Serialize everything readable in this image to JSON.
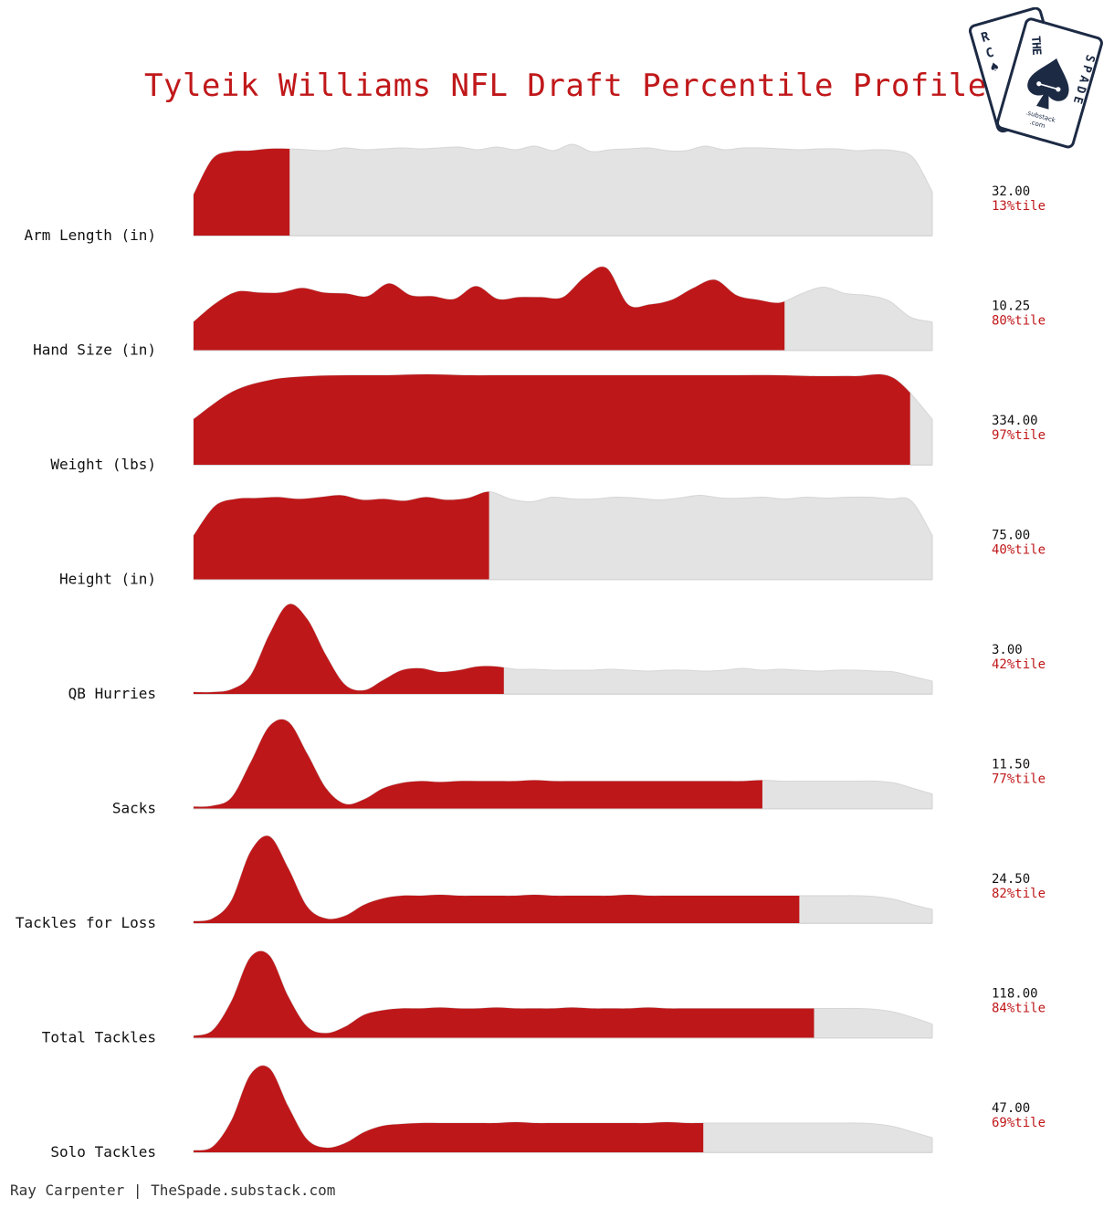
{
  "title": "Tyleik Williams NFL Draft Percentile Profile",
  "footer": "Ray Carpenter | TheSpade.substack.com",
  "logo": {
    "back_card_letters": [
      "R",
      "C"
    ],
    "front_card_top": "THE",
    "front_card_side": "SPADE",
    "substack": ".substack",
    "com": ".com"
  },
  "colors": {
    "highlight": "#be1719",
    "background_dist": "#e3e3e3",
    "value_text": "#111111",
    "percentile_text": "#c0181a",
    "logo": "#1c2a44"
  },
  "chart_data": {
    "type": "area",
    "description_of_encoding": "",
    "metrics": [
      {
        "label": "Arm Length (in)",
        "value_label": "32.00",
        "percentile_label": "13%tile",
        "percentile": 13,
        "density": [
          0.45,
          0.84,
          0.92,
          0.93,
          0.95,
          0.95,
          0.94,
          0.93,
          0.96,
          0.94,
          0.95,
          0.96,
          0.95,
          0.96,
          0.97,
          0.94,
          0.97,
          0.94,
          0.98,
          0.93,
          1.0,
          0.92,
          0.94,
          0.95,
          0.96,
          0.93,
          0.93,
          0.98,
          0.94,
          0.96,
          0.96,
          0.95,
          0.94,
          0.95,
          0.95,
          0.93,
          0.94,
          0.93,
          0.85,
          0.48
        ]
      },
      {
        "label": "Hand Size (in)",
        "value_label": "10.25",
        "percentile_label": "80%tile",
        "percentile": 80,
        "density": [
          0.31,
          0.51,
          0.64,
          0.63,
          0.63,
          0.68,
          0.63,
          0.62,
          0.59,
          0.73,
          0.6,
          0.59,
          0.56,
          0.7,
          0.56,
          0.58,
          0.58,
          0.58,
          0.8,
          0.9,
          0.5,
          0.5,
          0.55,
          0.68,
          0.77,
          0.6,
          0.55,
          0.52,
          0.62,
          0.69,
          0.62,
          0.6,
          0.54,
          0.36,
          0.31
        ]
      },
      {
        "label": "Weight (lbs)",
        "value_label": "334.00",
        "percentile_label": "97%tile",
        "percentile": 97,
        "density": [
          0.5,
          0.8,
          0.93,
          0.97,
          0.98,
          0.98,
          0.99,
          0.98,
          0.98,
          0.98,
          0.98,
          0.98,
          0.98,
          0.98,
          0.98,
          0.98,
          0.97,
          0.97,
          0.95,
          0.5
        ]
      },
      {
        "label": "Height (in)",
        "value_label": "75.00",
        "percentile_label": "40%tile",
        "percentile": 40,
        "density": [
          0.48,
          0.8,
          0.88,
          0.89,
          0.9,
          0.88,
          0.9,
          0.92,
          0.87,
          0.88,
          0.86,
          0.9,
          0.87,
          0.89,
          0.96,
          0.88,
          0.85,
          0.9,
          0.88,
          0.88,
          0.9,
          0.89,
          0.87,
          0.89,
          0.92,
          0.89,
          0.89,
          0.9,
          0.88,
          0.9,
          0.89,
          0.9,
          0.9,
          0.88,
          0.86,
          0.48
        ]
      },
      {
        "label": "QB Hurries",
        "value_label": "3.00",
        "percentile_label": "42%tile",
        "percentile": 42,
        "density": [
          0.02,
          0.02,
          0.05,
          0.2,
          0.65,
          0.98,
          0.82,
          0.42,
          0.1,
          0.04,
          0.15,
          0.26,
          0.28,
          0.24,
          0.26,
          0.3,
          0.3,
          0.27,
          0.27,
          0.26,
          0.26,
          0.26,
          0.27,
          0.26,
          0.25,
          0.26,
          0.26,
          0.25,
          0.26,
          0.28,
          0.26,
          0.27,
          0.26,
          0.25,
          0.26,
          0.26,
          0.25,
          0.24,
          0.19,
          0.14
        ]
      },
      {
        "label": "Sacks",
        "value_label": "11.50",
        "percentile_label": "77%tile",
        "percentile": 77,
        "density": [
          0.02,
          0.03,
          0.12,
          0.5,
          0.9,
          0.95,
          0.6,
          0.22,
          0.05,
          0.1,
          0.22,
          0.28,
          0.3,
          0.29,
          0.3,
          0.3,
          0.3,
          0.3,
          0.31,
          0.3,
          0.3,
          0.3,
          0.3,
          0.3,
          0.3,
          0.3,
          0.3,
          0.3,
          0.3,
          0.3,
          0.31,
          0.3,
          0.3,
          0.3,
          0.3,
          0.3,
          0.3,
          0.28,
          0.22,
          0.16
        ]
      },
      {
        "label": "Tackles for Loss",
        "value_label": "24.50",
        "percentile_label": "82%tile",
        "percentile": 82,
        "density": [
          0.02,
          0.05,
          0.25,
          0.78,
          0.95,
          0.6,
          0.18,
          0.05,
          0.08,
          0.2,
          0.27,
          0.3,
          0.3,
          0.31,
          0.3,
          0.3,
          0.3,
          0.3,
          0.31,
          0.3,
          0.3,
          0.3,
          0.3,
          0.31,
          0.3,
          0.3,
          0.3,
          0.3,
          0.3,
          0.3,
          0.3,
          0.3,
          0.3,
          0.3,
          0.3,
          0.3,
          0.29,
          0.26,
          0.2,
          0.15
        ]
      },
      {
        "label": "Total Tackles",
        "value_label": "118.00",
        "percentile_label": "84%tile",
        "percentile": 84,
        "density": [
          0.02,
          0.08,
          0.4,
          0.88,
          0.9,
          0.45,
          0.12,
          0.05,
          0.12,
          0.25,
          0.3,
          0.32,
          0.32,
          0.33,
          0.32,
          0.32,
          0.33,
          0.32,
          0.32,
          0.32,
          0.33,
          0.32,
          0.32,
          0.32,
          0.33,
          0.32,
          0.32,
          0.32,
          0.32,
          0.32,
          0.32,
          0.32,
          0.32,
          0.32,
          0.32,
          0.32,
          0.31,
          0.28,
          0.22,
          0.15
        ]
      },
      {
        "label": "Solo Tackles",
        "value_label": "47.00",
        "percentile_label": "69%tile",
        "percentile": 69,
        "density": [
          0.02,
          0.06,
          0.35,
          0.85,
          0.92,
          0.5,
          0.14,
          0.05,
          0.1,
          0.22,
          0.29,
          0.31,
          0.32,
          0.32,
          0.32,
          0.32,
          0.32,
          0.33,
          0.32,
          0.32,
          0.32,
          0.32,
          0.32,
          0.32,
          0.32,
          0.33,
          0.32,
          0.32,
          0.32,
          0.32,
          0.32,
          0.32,
          0.32,
          0.32,
          0.32,
          0.32,
          0.31,
          0.28,
          0.22,
          0.16
        ]
      }
    ]
  }
}
